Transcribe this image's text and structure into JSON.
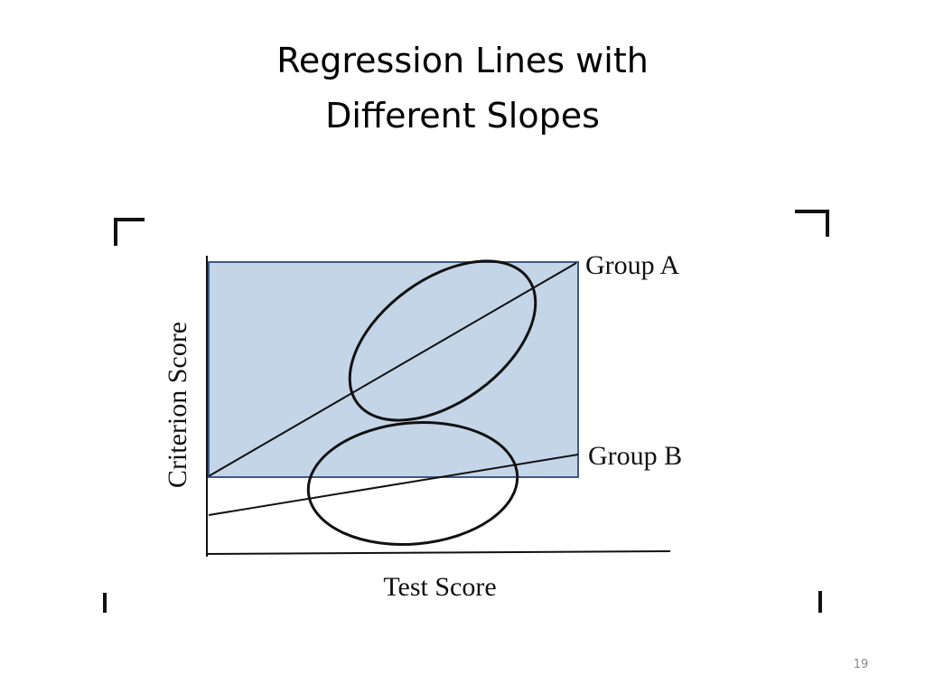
{
  "slide": {
    "title": [
      "Regression Lines with",
      "Different Slopes"
    ],
    "page_number": "19"
  },
  "diagram": {
    "y_axis_label": "Criterion Score",
    "x_axis_label": "Test Score",
    "line_labels": [
      "Group A",
      "Group B"
    ]
  }
}
